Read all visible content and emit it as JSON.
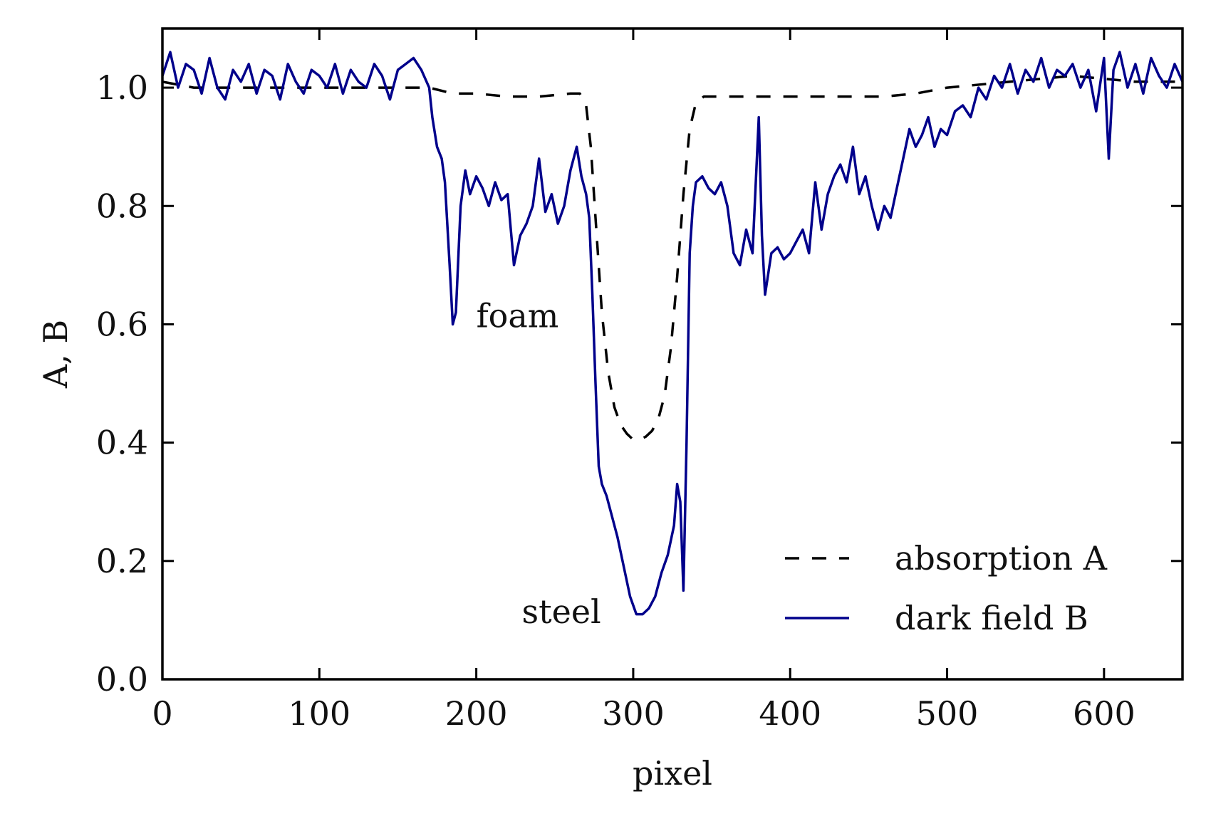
{
  "chart_data": {
    "type": "line",
    "title": "",
    "xlabel": "pixel",
    "ylabel": "A, B",
    "xlim": [
      0,
      650
    ],
    "ylim": [
      0.0,
      1.1
    ],
    "grid": false,
    "xticks": [
      0,
      100,
      200,
      300,
      400,
      500,
      600
    ],
    "xtick_labels": [
      "0",
      "100",
      "200",
      "300",
      "400",
      "500",
      "600"
    ],
    "yticks": [
      0.0,
      0.2,
      0.4,
      0.6,
      0.8,
      1.0
    ],
    "ytick_labels": [
      "0.0",
      "0.2",
      "0.4",
      "0.6",
      "0.8",
      "1.0"
    ],
    "legend_position": "lower-right",
    "series": [
      {
        "name": "absorption A",
        "style": "dashed",
        "color": "#000000",
        "x": [
          0,
          20,
          60,
          100,
          140,
          170,
          185,
          200,
          220,
          240,
          260,
          266,
          270,
          273,
          276,
          280,
          284,
          288,
          292,
          296,
          300,
          304,
          308,
          312,
          316,
          320,
          324,
          328,
          332,
          336,
          340,
          345,
          350,
          380,
          420,
          460,
          480,
          500,
          540,
          580,
          620,
          650
        ],
        "y": [
          1.01,
          1.0,
          1.0,
          1.0,
          1.0,
          1.0,
          0.99,
          0.99,
          0.985,
          0.985,
          0.99,
          0.99,
          0.97,
          0.9,
          0.78,
          0.62,
          0.52,
          0.46,
          0.43,
          0.415,
          0.405,
          0.405,
          0.41,
          0.42,
          0.44,
          0.48,
          0.56,
          0.68,
          0.82,
          0.93,
          0.975,
          0.985,
          0.985,
          0.985,
          0.985,
          0.985,
          0.99,
          1.0,
          1.01,
          1.02,
          1.01,
          1.01
        ]
      },
      {
        "name": "dark field B",
        "style": "solid",
        "color": "#00008b",
        "x": [
          0,
          5,
          10,
          15,
          20,
          25,
          30,
          35,
          40,
          45,
          50,
          55,
          60,
          65,
          70,
          75,
          80,
          85,
          90,
          95,
          100,
          105,
          110,
          115,
          120,
          125,
          130,
          135,
          140,
          145,
          150,
          155,
          160,
          165,
          170,
          172,
          175,
          178,
          180,
          183,
          185,
          187,
          190,
          193,
          196,
          200,
          204,
          208,
          212,
          216,
          220,
          224,
          228,
          232,
          236,
          240,
          244,
          248,
          252,
          256,
          260,
          264,
          267,
          270,
          272,
          274,
          276,
          278,
          280,
          283,
          286,
          290,
          294,
          298,
          302,
          306,
          310,
          314,
          318,
          322,
          326,
          328,
          330,
          332,
          334,
          336,
          338,
          340,
          344,
          348,
          352,
          356,
          360,
          364,
          368,
          372,
          376,
          380,
          382,
          384,
          388,
          392,
          396,
          400,
          404,
          408,
          412,
          416,
          420,
          424,
          428,
          432,
          436,
          440,
          444,
          448,
          452,
          456,
          460,
          464,
          468,
          472,
          476,
          480,
          484,
          488,
          492,
          496,
          500,
          505,
          510,
          515,
          520,
          525,
          530,
          535,
          540,
          545,
          550,
          555,
          560,
          565,
          570,
          575,
          580,
          585,
          590,
          595,
          600,
          603,
          606,
          610,
          615,
          620,
          625,
          630,
          635,
          640,
          645,
          650
        ],
        "y": [
          1.02,
          1.06,
          1.0,
          1.04,
          1.03,
          0.99,
          1.05,
          1.0,
          0.98,
          1.03,
          1.01,
          1.04,
          0.99,
          1.03,
          1.02,
          0.98,
          1.04,
          1.01,
          0.99,
          1.03,
          1.02,
          1.0,
          1.04,
          0.99,
          1.03,
          1.01,
          1.0,
          1.04,
          1.02,
          0.98,
          1.03,
          1.04,
          1.05,
          1.03,
          1.0,
          0.95,
          0.9,
          0.88,
          0.84,
          0.7,
          0.6,
          0.62,
          0.8,
          0.86,
          0.82,
          0.85,
          0.83,
          0.8,
          0.84,
          0.81,
          0.82,
          0.7,
          0.75,
          0.77,
          0.8,
          0.88,
          0.79,
          0.82,
          0.77,
          0.8,
          0.86,
          0.9,
          0.85,
          0.82,
          0.78,
          0.65,
          0.5,
          0.36,
          0.33,
          0.31,
          0.28,
          0.24,
          0.19,
          0.14,
          0.11,
          0.11,
          0.12,
          0.14,
          0.18,
          0.21,
          0.26,
          0.33,
          0.3,
          0.15,
          0.4,
          0.72,
          0.8,
          0.84,
          0.85,
          0.83,
          0.82,
          0.84,
          0.8,
          0.72,
          0.7,
          0.76,
          0.72,
          0.95,
          0.75,
          0.65,
          0.72,
          0.73,
          0.71,
          0.72,
          0.74,
          0.76,
          0.72,
          0.84,
          0.76,
          0.82,
          0.85,
          0.87,
          0.84,
          0.9,
          0.82,
          0.85,
          0.8,
          0.76,
          0.8,
          0.78,
          0.83,
          0.88,
          0.93,
          0.9,
          0.92,
          0.95,
          0.9,
          0.93,
          0.92,
          0.96,
          0.97,
          0.95,
          1.0,
          0.98,
          1.02,
          1.0,
          1.04,
          0.99,
          1.03,
          1.01,
          1.05,
          1.0,
          1.03,
          1.02,
          1.04,
          1.0,
          1.03,
          0.96,
          1.05,
          0.88,
          1.03,
          1.06,
          1.0,
          1.04,
          0.99,
          1.05,
          1.02,
          1.0,
          1.04,
          1.01
        ]
      }
    ],
    "annotations": [
      {
        "text": "foam",
        "x": 200,
        "y": 0.6
      },
      {
        "text": "steel",
        "x": 229,
        "y": 0.1
      }
    ]
  }
}
